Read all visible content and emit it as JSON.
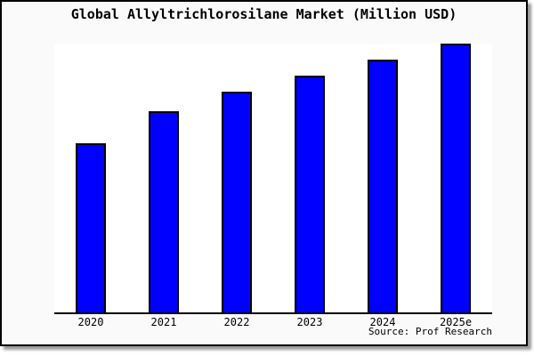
{
  "chart": {
    "title": "Global Allyltrichlorosilane Market (Million USD)",
    "source": "Source: Prof Research",
    "colors": {
      "bar_fill": "#0000FF",
      "bar_border": "#000000",
      "frame_background": "#FAFAFA",
      "plot_background": "#FFFFFF",
      "axis_color": "#000000",
      "frame_border": "#000000",
      "shadow": "#999999",
      "text_color": "#000000"
    }
  },
  "chart_data": {
    "type": "bar",
    "title": "Global Allyltrichlorosilane Market (Million USD)",
    "categories": [
      "2020",
      "2021",
      "2022",
      "2023",
      "2024",
      "2025e"
    ],
    "values": [
      63,
      75,
      82,
      88,
      94,
      100
    ],
    "values_note": "Y axis is unlabeled in the chart; values are relative bar heights with 2025e = 100.",
    "xlabel": "",
    "ylabel": "",
    "ylim": [
      0,
      100
    ],
    "grid": false,
    "legend": null,
    "y_axis_labeled": false,
    "source": "Source: Prof Research"
  }
}
